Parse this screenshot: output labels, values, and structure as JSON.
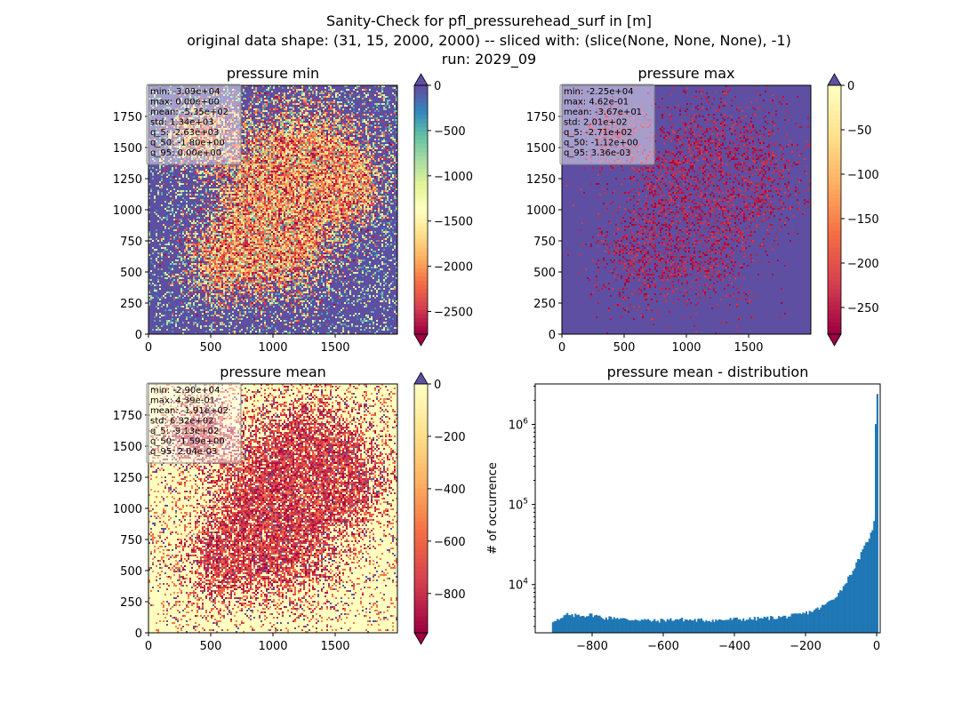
{
  "suptitle": [
    "Sanity-Check for pfl_pressurehead_surf in [m]",
    "original data shape: (31, 15, 2000, 2000) -- sliced with: (slice(None, None, None), -1)",
    "run: 2029_09"
  ],
  "colors": {
    "spectral": [
      "#9e0142",
      "#d53e4f",
      "#f46d43",
      "#fdae61",
      "#fee08b",
      "#ffffbf",
      "#e6f598",
      "#abdda4",
      "#66c2a5",
      "#3288bd",
      "#5e4fa2"
    ],
    "hist_bar": "#1f77b4",
    "over_color": "#5e4fa2",
    "under_color": "#9e0142"
  },
  "chart_data": [
    {
      "type": "heatmap",
      "title": "pressure min",
      "xlim": [
        0,
        2000
      ],
      "ylim": [
        0,
        2000
      ],
      "xticks": [
        0,
        500,
        1000,
        1500
      ],
      "yticks": [
        0,
        250,
        500,
        750,
        1000,
        1250,
        1500,
        1750
      ],
      "colorbar": {
        "vmin": -2750,
        "vmax": 0,
        "ticks": [
          0,
          -500,
          -1000,
          -1500,
          -2000,
          -2500
        ],
        "extend": "both"
      },
      "base_value": 0,
      "stats": [
        "min: -3.09e+04",
        "max: 0.00e+00",
        "mean: -5.35e+02",
        "std: 1.34e+03",
        "q_5: -2.63e+03",
        "q_50: -1.80e+00",
        "q_95: 0.00e+00"
      ]
    },
    {
      "type": "heatmap",
      "title": "pressure max",
      "xlim": [
        0,
        2000
      ],
      "ylim": [
        0,
        2000
      ],
      "xticks": [
        0,
        500,
        1000,
        1500
      ],
      "yticks": [
        0,
        250,
        500,
        750,
        1000,
        1250,
        1500,
        1750
      ],
      "colorbar": {
        "vmin": -280,
        "vmax": 0,
        "ticks": [
          0,
          -50,
          -100,
          -150,
          -200,
          -250
        ],
        "extend": "both"
      },
      "base_value": 0,
      "stats": [
        "min: -2.25e+04",
        "max: 4.62e-01",
        "mean: -3.67e+01",
        "std: 2.01e+02",
        "q_5: -2.71e+02",
        "q_50: -1.12e+00",
        "q_95: 3.36e-03"
      ]
    },
    {
      "type": "heatmap",
      "title": "pressure mean",
      "xlim": [
        0,
        2000
      ],
      "ylim": [
        0,
        2000
      ],
      "xticks": [
        0,
        500,
        1000,
        1500
      ],
      "yticks": [
        0,
        250,
        500,
        750,
        1000,
        1250,
        1500,
        1750
      ],
      "colorbar": {
        "vmin": -950,
        "vmax": 0,
        "ticks": [
          0,
          -200,
          -400,
          -600,
          -800
        ],
        "extend": "both"
      },
      "base_value": 0,
      "stats": [
        "min: -2.90e+04",
        "max: 4.39e-01",
        "mean: -1.91e+02",
        "std: 6.32e+02",
        "q_5: -9.13e+02",
        "q_50: -1.59e+00",
        "q_95: 2.04e-03"
      ]
    },
    {
      "type": "bar",
      "title": "pressure mean - distribution",
      "xlabel": "",
      "ylabel": "# of occurrence",
      "yscale": "log",
      "xlim": [
        -960,
        10
      ],
      "ylim": [
        2500,
        3200000
      ],
      "xticks": [
        -800,
        -600,
        -400,
        -200,
        0
      ],
      "yticks": [
        10000,
        100000,
        1000000
      ],
      "ytick_labels": [
        "10^4",
        "10^5",
        "10^6"
      ],
      "bin_range": [
        -913,
        0
      ],
      "bin_width": 4.54,
      "shape_points": [
        [
          -913,
          3400
        ],
        [
          -905,
          3700
        ],
        [
          -890,
          3600
        ],
        [
          -870,
          4300
        ],
        [
          -860,
          4000
        ],
        [
          -840,
          4200
        ],
        [
          -820,
          4100
        ],
        [
          -800,
          4200
        ],
        [
          -780,
          4000
        ],
        [
          -760,
          3800
        ],
        [
          -740,
          3900
        ],
        [
          -720,
          3800
        ],
        [
          -700,
          3600
        ],
        [
          -680,
          3700
        ],
        [
          -650,
          3600
        ],
        [
          -620,
          3500
        ],
        [
          -600,
          3600
        ],
        [
          -560,
          3700
        ],
        [
          -520,
          3600
        ],
        [
          -480,
          3600
        ],
        [
          -440,
          3600
        ],
        [
          -400,
          3700
        ],
        [
          -360,
          3700
        ],
        [
          -320,
          3800
        ],
        [
          -280,
          3900
        ],
        [
          -250,
          4000
        ],
        [
          -220,
          4200
        ],
        [
          -200,
          4400
        ],
        [
          -180,
          4700
        ],
        [
          -160,
          5100
        ],
        [
          -140,
          5800
        ],
        [
          -120,
          6800
        ],
        [
          -100,
          8500
        ],
        [
          -80,
          12000
        ],
        [
          -60,
          17000
        ],
        [
          -40,
          26000
        ],
        [
          -20,
          40000
        ],
        [
          -10,
          48000
        ],
        [
          -5,
          80000
        ],
        [
          -2,
          2400000
        ]
      ]
    }
  ]
}
